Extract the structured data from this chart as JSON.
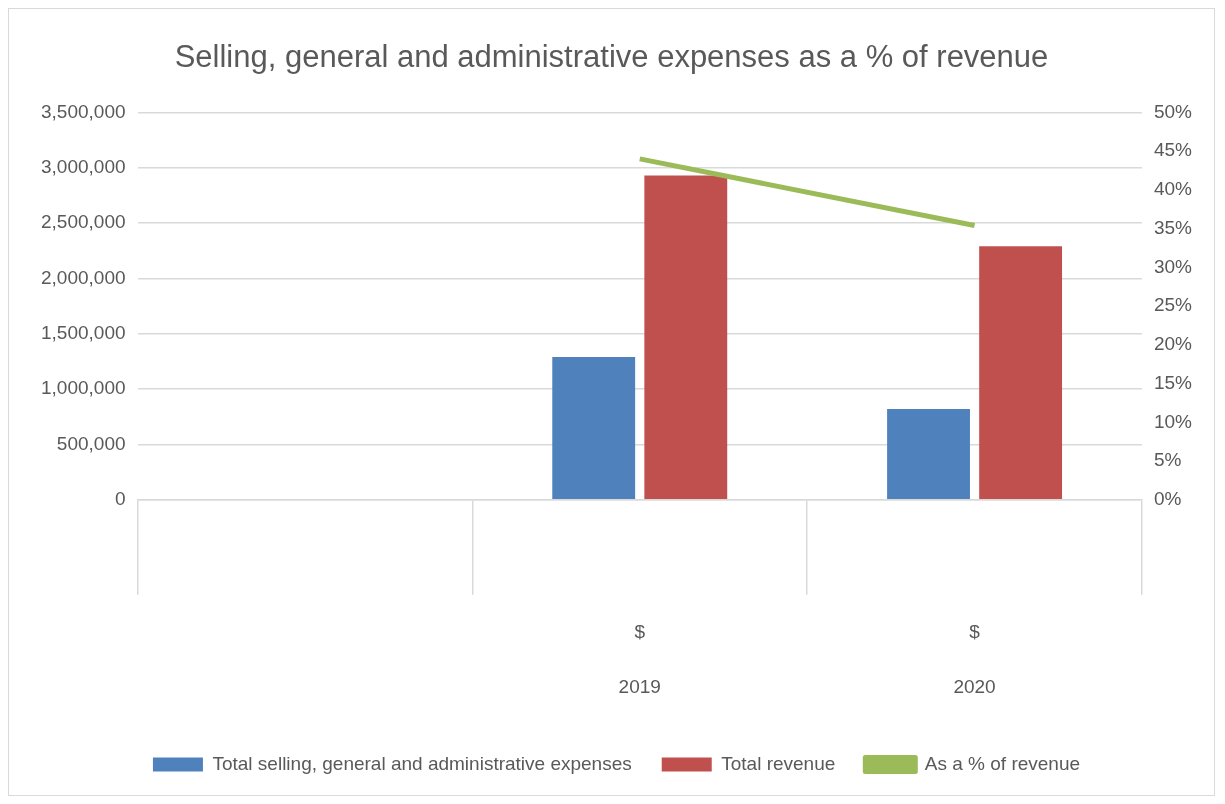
{
  "chart_data": {
    "type": "bar",
    "title": "Selling, general and administrative expenses as a % of revenue",
    "categories": [
      null,
      "$\n2019",
      "$\n2020"
    ],
    "series": [
      {
        "name": "Total selling, general and administrative expenses",
        "color": "#4f81bd",
        "values": [
          null,
          1290000,
          820000
        ]
      },
      {
        "name": "Total revenue",
        "color": "#c0504d",
        "values": [
          null,
          2930000,
          2290000
        ]
      },
      {
        "name": "As a % of revenue",
        "type": "line",
        "axis": "y2",
        "color": "#9bbb59",
        "values": [
          null,
          44.0,
          35.4
        ]
      }
    ],
    "ylim": [
      0,
      3500000
    ],
    "yticks": [
      {
        "value": 0,
        "label": "0"
      },
      {
        "value": 500000,
        "label": "500,000"
      },
      {
        "value": 1000000,
        "label": "1,000,000"
      },
      {
        "value": 1500000,
        "label": "1,500,000"
      },
      {
        "value": 2000000,
        "label": "2,000,000"
      },
      {
        "value": 2500000,
        "label": "2,500,000"
      },
      {
        "value": 3000000,
        "label": "3,000,000"
      },
      {
        "value": 3500000,
        "label": "3,500,000"
      }
    ],
    "y2lim": [
      0,
      50
    ],
    "y2ticks": [
      {
        "value": 0,
        "label": "0%"
      },
      {
        "value": 5,
        "label": "5%"
      },
      {
        "value": 10,
        "label": "10%"
      },
      {
        "value": 15,
        "label": "15%"
      },
      {
        "value": 20,
        "label": "20%"
      },
      {
        "value": 25,
        "label": "25%"
      },
      {
        "value": 30,
        "label": "30%"
      },
      {
        "value": 35,
        "label": "35%"
      },
      {
        "value": 40,
        "label": "40%"
      },
      {
        "value": 45,
        "label": "45%"
      },
      {
        "value": 50,
        "label": "50%"
      }
    ],
    "grid": "y",
    "legend": "bottom",
    "marker": "none"
  }
}
